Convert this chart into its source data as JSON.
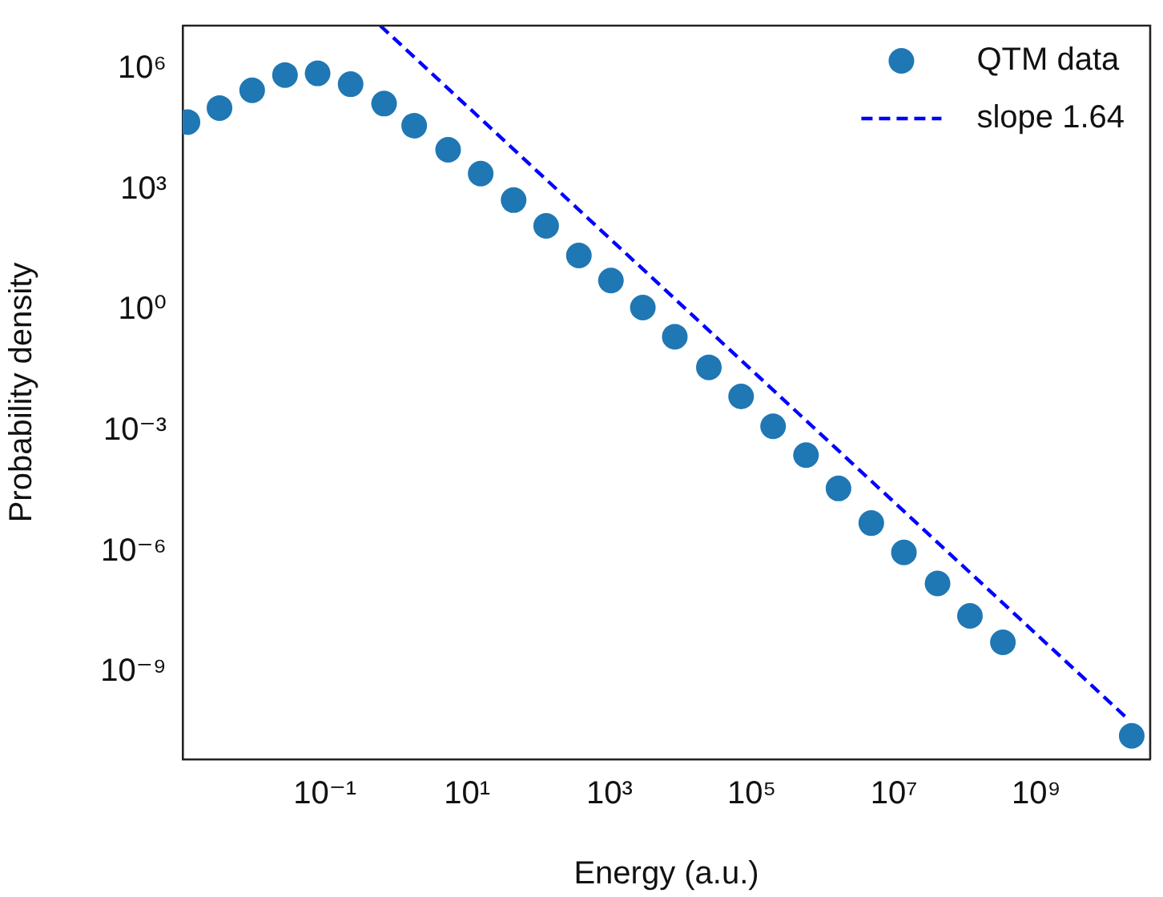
{
  "chart_data": {
    "type": "scatter",
    "xlabel": "Energy (a.u.)",
    "ylabel": "Probability density",
    "log": "xy",
    "legend": "top right",
    "grid": false,
    "xlim": [
      0.001,
      40000000000.0
    ],
    "ylim": [
      6.8e-12,
      12000000.0
    ],
    "xticks": [
      {
        "value": 0.1,
        "label": "10⁻¹"
      },
      {
        "value": 10,
        "label": "10¹"
      },
      {
        "value": 1000,
        "label": "10³"
      },
      {
        "value": 100000,
        "label": "10⁵"
      },
      {
        "value": 10000000,
        "label": "10⁷"
      },
      {
        "value": 1000000000,
        "label": "10⁹"
      }
    ],
    "yticks": [
      {
        "value": 1e-09,
        "label": "10⁻⁹"
      },
      {
        "value": 1e-06,
        "label": "10⁻⁶"
      },
      {
        "value": 0.001,
        "label": "10⁻³"
      },
      {
        "value": 1,
        "label": "10⁰"
      },
      {
        "value": 1000,
        "label": "10³"
      },
      {
        "value": 1000000,
        "label": "10⁶"
      }
    ],
    "series": [
      {
        "name": "QTM data",
        "marker": "circle",
        "color": "#1f77b4",
        "x": [
          0.00117,
          0.0033,
          0.0095,
          0.0275,
          0.079,
          0.23,
          0.68,
          1.8,
          5.4,
          15.5,
          45,
          129,
          372,
          1050,
          2950,
          8300,
          25000,
          71000,
          200000,
          580000,
          1660000,
          4800000,
          13800000,
          41000000,
          117000000,
          340000000,
          22000000000
        ],
        "values": [
          48000,
          107000,
          295000,
          710000,
          780000,
          420000,
          138000,
          39000,
          9800,
          2500,
          550,
          126,
          23,
          5.5,
          1.17,
          0.22,
          0.038,
          0.0072,
          0.0013,
          0.00025,
          3.7e-05,
          5.1e-06,
          9.5e-07,
          1.6e-07,
          2.5e-08,
          5.5e-09,
          2.6e-11
        ]
      },
      {
        "name": "slope 1.64",
        "type": "line",
        "marker": "none",
        "line_style": "dashed",
        "color": "#0000ff",
        "x": [
          0.6,
          20000000000
        ],
        "values": [
          12000000,
          6.5e-11
        ]
      }
    ]
  }
}
